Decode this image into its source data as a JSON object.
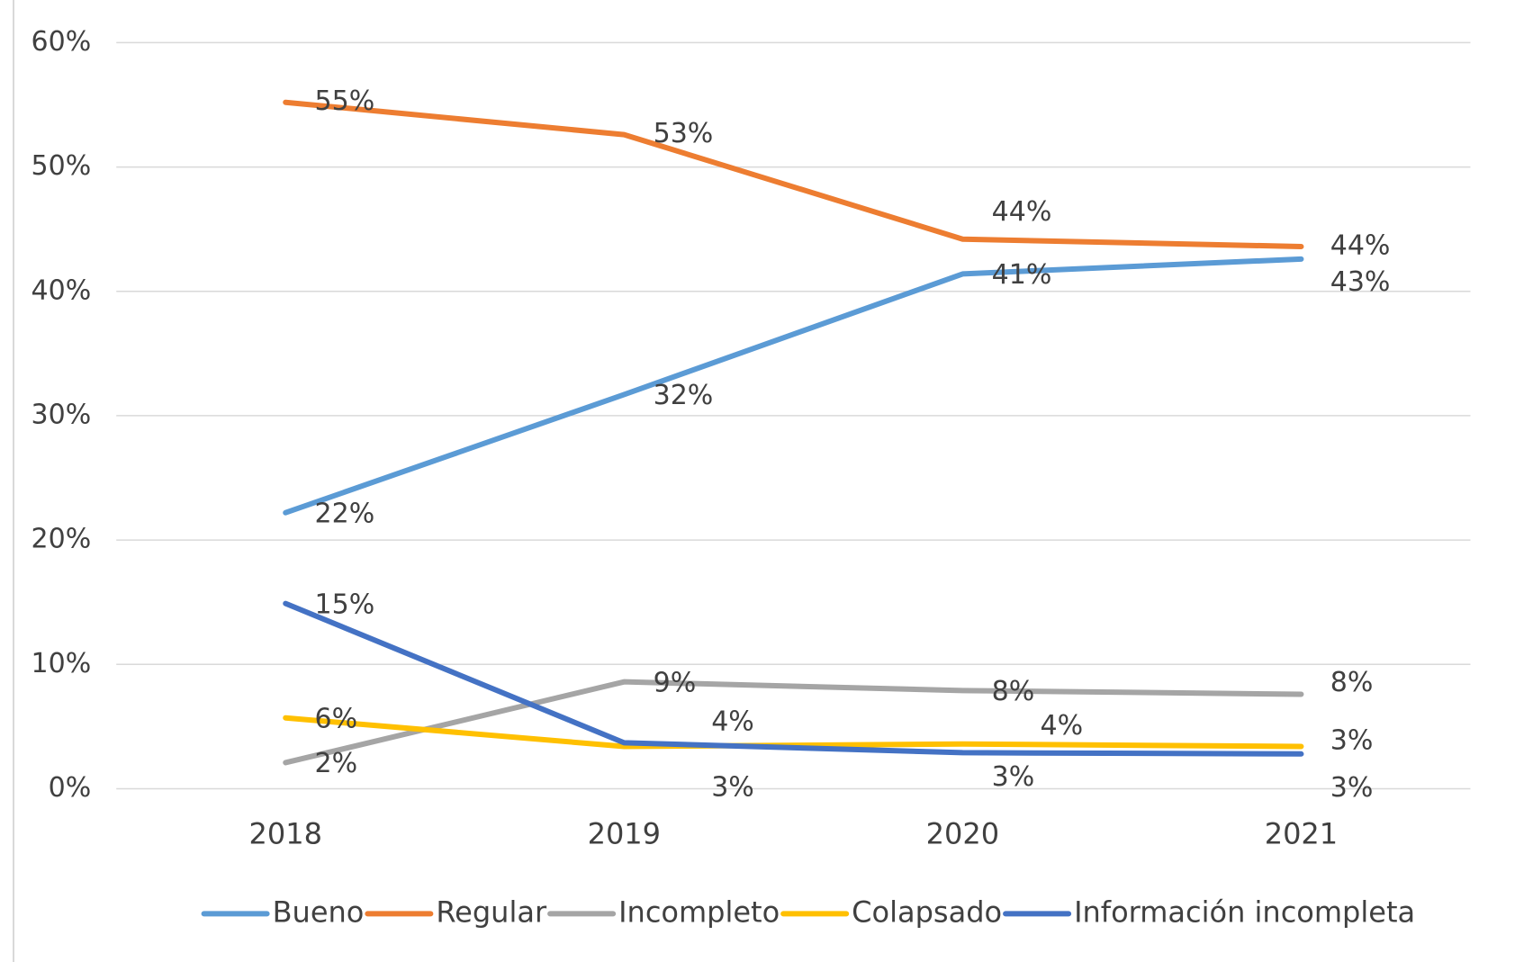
{
  "chart_data": {
    "type": "line",
    "categories": [
      "2018",
      "2019",
      "2020",
      "2021"
    ],
    "ylim": [
      0,
      60
    ],
    "yticks": [
      {
        "value": 0,
        "label": "0%"
      },
      {
        "value": 10,
        "label": "10%"
      },
      {
        "value": 20,
        "label": "20%"
      },
      {
        "value": 30,
        "label": "30%"
      },
      {
        "value": 40,
        "label": "40%"
      },
      {
        "value": 50,
        "label": "50%"
      },
      {
        "value": 60,
        "label": "60%"
      }
    ],
    "grid": true,
    "legend": "bottom",
    "series": [
      {
        "name": "Bueno",
        "color": "#5b9bd5",
        "values": [
          22.2,
          31.7,
          41.4,
          42.6
        ],
        "value_labels": [
          "22%",
          "32%",
          "41%",
          "43%"
        ]
      },
      {
        "name": "Regular",
        "color": "#ed7d31",
        "values": [
          55.2,
          52.6,
          44.2,
          43.6
        ],
        "value_labels": [
          "55%",
          "53%",
          "44%",
          "44%"
        ]
      },
      {
        "name": "Incompleto",
        "color": "#a5a5a5",
        "values": [
          2.1,
          8.6,
          7.9,
          7.6
        ],
        "value_labels": [
          "2%",
          "9%",
          "8%",
          "8%"
        ]
      },
      {
        "name": "Colapsado",
        "color": "#ffc000",
        "values": [
          5.7,
          3.4,
          3.6,
          3.4
        ],
        "value_labels": [
          "6%",
          "3%",
          "4%",
          "3%"
        ]
      },
      {
        "name": "Información incompleta",
        "color": "#4472c4",
        "values": [
          14.9,
          3.7,
          2.9,
          2.8
        ],
        "value_labels": [
          "15%",
          "4%",
          "3%",
          "3%"
        ]
      }
    ]
  }
}
